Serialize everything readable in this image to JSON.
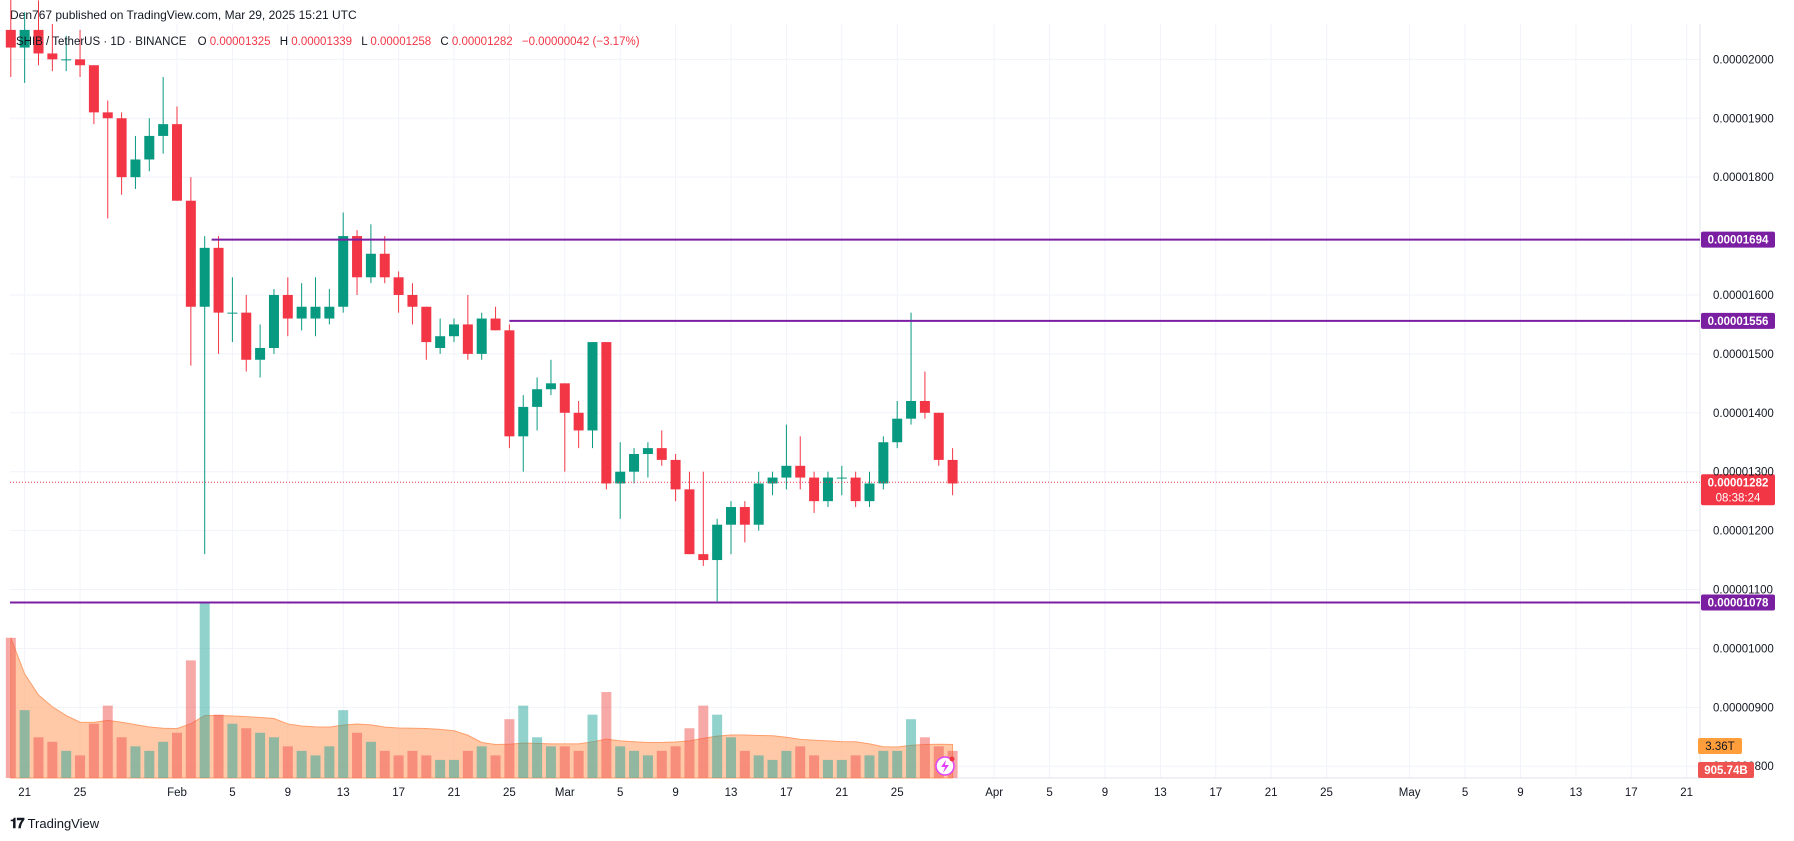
{
  "header": {
    "text": "Den767 published on TradingView.com, Mar 29, 2025 15:21 UTC"
  },
  "footer": {
    "logo": "𝟏𝟕",
    "brand": "TradingView"
  },
  "legend": {
    "symbol": "SHIB / TetherUS · 1D · BINANCE",
    "o_label": "O",
    "o": "0.00001325",
    "h_label": "H",
    "h": "0.00001339",
    "l_label": "L",
    "l": "0.00001258",
    "c_label": "C",
    "c": "0.00001282",
    "chg": "−0.00000042 (−3.17%)"
  },
  "colors": {
    "up": "#089981",
    "down": "#f23645",
    "level": "#7b1fa2",
    "vol_ma": "#ffb58a"
  },
  "chart_data": {
    "type": "candlestick",
    "title": "SHIB / TetherUS · 1D · BINANCE",
    "ylim": [
      7.8e-06,
      2.06e-05
    ],
    "y_ticks": [
      "0.00002000",
      "0.00001900",
      "0.00001800",
      "0.00001600",
      "0.00001500",
      "0.00001400",
      "0.00001300",
      "0.00001200",
      "0.00001100",
      "0.00001000",
      "0.00000900",
      "0.00000800"
    ],
    "y_tick_values": [
      2e-05,
      1.9e-05,
      1.8e-05,
      1.6e-05,
      1.5e-05,
      1.4e-05,
      1.3e-05,
      1.2e-05,
      1.1e-05,
      1e-05,
      9e-06,
      8e-06
    ],
    "x_ticks": [
      {
        "label": "21",
        "day": -11
      },
      {
        "label": "25",
        "day": -7
      },
      {
        "label": "Feb",
        "day": 0
      },
      {
        "label": "5",
        "day": 4
      },
      {
        "label": "9",
        "day": 8
      },
      {
        "label": "13",
        "day": 12
      },
      {
        "label": "17",
        "day": 16
      },
      {
        "label": "21",
        "day": 20
      },
      {
        "label": "25",
        "day": 24
      },
      {
        "label": "Mar",
        "day": 28
      },
      {
        "label": "5",
        "day": 32
      },
      {
        "label": "9",
        "day": 36
      },
      {
        "label": "13",
        "day": 40
      },
      {
        "label": "17",
        "day": 44
      },
      {
        "label": "21",
        "day": 48
      },
      {
        "label": "25",
        "day": 52
      },
      {
        "label": "Apr",
        "day": 59
      },
      {
        "label": "5",
        "day": 63
      },
      {
        "label": "9",
        "day": 67
      },
      {
        "label": "13",
        "day": 71
      },
      {
        "label": "17",
        "day": 75
      },
      {
        "label": "21",
        "day": 79
      },
      {
        "label": "25",
        "day": 83
      },
      {
        "label": "May",
        "day": 89
      },
      {
        "label": "5",
        "day": 93
      },
      {
        "label": "9",
        "day": 97
      },
      {
        "label": "13",
        "day": 101
      },
      {
        "label": "17",
        "day": 105
      },
      {
        "label": "21",
        "day": 109
      }
    ],
    "levels": [
      {
        "value": 1.694e-05,
        "label": "0.00001694"
      },
      {
        "value": 1.556e-05,
        "label": "0.00001556"
      },
      {
        "value": 1.078e-05,
        "label": "0.00001078"
      }
    ],
    "last_price": {
      "value": 1.282e-05,
      "label": "0.00001282",
      "countdown": "08:38:24"
    },
    "volume": {
      "last_label": "905.74B",
      "ma_label": "3.36T",
      "max": 4.2
    },
    "candles": [
      {
        "d": -12,
        "o": 2.05,
        "h": 2.12,
        "l": 1.97,
        "c": 2.02,
        "v": 3.1
      },
      {
        "d": -11,
        "o": 2.02,
        "h": 2.08,
        "l": 1.96,
        "c": 2.05,
        "v": 1.5
      },
      {
        "d": -10,
        "o": 2.05,
        "h": 2.1,
        "l": 1.99,
        "c": 2.01,
        "v": 0.9
      },
      {
        "d": -9,
        "o": 2.01,
        "h": 2.06,
        "l": 1.98,
        "c": 2.0,
        "v": 0.8
      },
      {
        "d": -8,
        "o": 2.0,
        "h": 2.04,
        "l": 1.98,
        "c": 2.0,
        "v": 0.6
      },
      {
        "d": -7,
        "o": 2.0,
        "h": 2.05,
        "l": 1.97,
        "c": 1.99,
        "v": 0.5
      },
      {
        "d": -6,
        "o": 1.99,
        "h": 1.99,
        "l": 1.89,
        "c": 1.91,
        "v": 1.2
      },
      {
        "d": -5,
        "o": 1.91,
        "h": 1.93,
        "l": 1.73,
        "c": 1.9,
        "v": 1.6
      },
      {
        "d": -4,
        "o": 1.9,
        "h": 1.91,
        "l": 1.77,
        "c": 1.8,
        "v": 0.9
      },
      {
        "d": -3,
        "o": 1.8,
        "h": 1.87,
        "l": 1.78,
        "c": 1.83,
        "v": 0.7
      },
      {
        "d": -2,
        "o": 1.83,
        "h": 1.9,
        "l": 1.81,
        "c": 1.87,
        "v": 0.6
      },
      {
        "d": -1,
        "o": 1.87,
        "h": 1.97,
        "l": 1.84,
        "c": 1.89,
        "v": 0.8
      },
      {
        "d": 0,
        "o": 1.89,
        "h": 1.92,
        "l": 1.76,
        "c": 1.76,
        "v": 1.0
      },
      {
        "d": 1,
        "o": 1.76,
        "h": 1.8,
        "l": 1.48,
        "c": 1.58,
        "v": 2.6
      },
      {
        "d": 2,
        "o": 1.58,
        "h": 1.7,
        "l": 1.16,
        "c": 1.68,
        "v": 3.9
      },
      {
        "d": 3,
        "o": 1.68,
        "h": 1.7,
        "l": 1.5,
        "c": 1.57,
        "v": 1.4
      },
      {
        "d": 4,
        "o": 1.57,
        "h": 1.63,
        "l": 1.52,
        "c": 1.57,
        "v": 1.2
      },
      {
        "d": 5,
        "o": 1.57,
        "h": 1.6,
        "l": 1.47,
        "c": 1.49,
        "v": 1.1
      },
      {
        "d": 6,
        "o": 1.49,
        "h": 1.55,
        "l": 1.46,
        "c": 1.51,
        "v": 1.0
      },
      {
        "d": 7,
        "o": 1.51,
        "h": 1.61,
        "l": 1.5,
        "c": 1.6,
        "v": 0.9
      },
      {
        "d": 8,
        "o": 1.6,
        "h": 1.63,
        "l": 1.53,
        "c": 1.56,
        "v": 0.7
      },
      {
        "d": 9,
        "o": 1.56,
        "h": 1.62,
        "l": 1.54,
        "c": 1.58,
        "v": 0.6
      },
      {
        "d": 10,
        "o": 1.56,
        "h": 1.63,
        "l": 1.53,
        "c": 1.58,
        "v": 0.5
      },
      {
        "d": 11,
        "o": 1.56,
        "h": 1.61,
        "l": 1.55,
        "c": 1.58,
        "v": 0.7
      },
      {
        "d": 12,
        "o": 1.58,
        "h": 1.74,
        "l": 1.57,
        "c": 1.7,
        "v": 1.5
      },
      {
        "d": 13,
        "o": 1.7,
        "h": 1.71,
        "l": 1.6,
        "c": 1.63,
        "v": 1.0
      },
      {
        "d": 14,
        "o": 1.63,
        "h": 1.72,
        "l": 1.62,
        "c": 1.67,
        "v": 0.8
      },
      {
        "d": 15,
        "o": 1.67,
        "h": 1.7,
        "l": 1.62,
        "c": 1.63,
        "v": 0.6
      },
      {
        "d": 16,
        "o": 1.63,
        "h": 1.64,
        "l": 1.57,
        "c": 1.6,
        "v": 0.5
      },
      {
        "d": 17,
        "o": 1.6,
        "h": 1.62,
        "l": 1.55,
        "c": 1.58,
        "v": 0.6
      },
      {
        "d": 18,
        "o": 1.58,
        "h": 1.58,
        "l": 1.49,
        "c": 1.52,
        "v": 0.5
      },
      {
        "d": 19,
        "o": 1.51,
        "h": 1.56,
        "l": 1.5,
        "c": 1.53,
        "v": 0.4
      },
      {
        "d": 20,
        "o": 1.53,
        "h": 1.56,
        "l": 1.52,
        "c": 1.55,
        "v": 0.4
      },
      {
        "d": 21,
        "o": 1.55,
        "h": 1.6,
        "l": 1.49,
        "c": 1.5,
        "v": 0.6
      },
      {
        "d": 22,
        "o": 1.5,
        "h": 1.57,
        "l": 1.49,
        "c": 1.56,
        "v": 0.7
      },
      {
        "d": 23,
        "o": 1.56,
        "h": 1.58,
        "l": 1.54,
        "c": 1.54,
        "v": 0.5
      },
      {
        "d": 24,
        "o": 1.54,
        "h": 1.55,
        "l": 1.34,
        "c": 1.36,
        "v": 1.3
      },
      {
        "d": 25,
        "o": 1.36,
        "h": 1.43,
        "l": 1.3,
        "c": 1.41,
        "v": 1.6
      },
      {
        "d": 26,
        "o": 1.41,
        "h": 1.46,
        "l": 1.37,
        "c": 1.44,
        "v": 0.9
      },
      {
        "d": 27,
        "o": 1.44,
        "h": 1.49,
        "l": 1.43,
        "c": 1.45,
        "v": 0.7
      },
      {
        "d": 28,
        "o": 1.45,
        "h": 1.45,
        "l": 1.3,
        "c": 1.4,
        "v": 0.7
      },
      {
        "d": 29,
        "o": 1.4,
        "h": 1.42,
        "l": 1.34,
        "c": 1.37,
        "v": 0.6
      },
      {
        "d": 30,
        "o": 1.37,
        "h": 1.52,
        "l": 1.34,
        "c": 1.52,
        "v": 1.4
      },
      {
        "d": 31,
        "o": 1.52,
        "h": 1.52,
        "l": 1.27,
        "c": 1.28,
        "v": 1.9
      },
      {
        "d": 32,
        "o": 1.28,
        "h": 1.35,
        "l": 1.22,
        "c": 1.3,
        "v": 0.7
      },
      {
        "d": 33,
        "o": 1.3,
        "h": 1.34,
        "l": 1.28,
        "c": 1.33,
        "v": 0.6
      },
      {
        "d": 34,
        "o": 1.33,
        "h": 1.35,
        "l": 1.29,
        "c": 1.34,
        "v": 0.5
      },
      {
        "d": 35,
        "o": 1.34,
        "h": 1.37,
        "l": 1.31,
        "c": 1.32,
        "v": 0.6
      },
      {
        "d": 36,
        "o": 1.32,
        "h": 1.33,
        "l": 1.25,
        "c": 1.27,
        "v": 0.7
      },
      {
        "d": 37,
        "o": 1.27,
        "h": 1.3,
        "l": 1.16,
        "c": 1.16,
        "v": 1.1
      },
      {
        "d": 38,
        "o": 1.16,
        "h": 1.3,
        "l": 1.14,
        "c": 1.15,
        "v": 1.6
      },
      {
        "d": 39,
        "o": 1.15,
        "h": 1.22,
        "l": 1.08,
        "c": 1.21,
        "v": 1.4
      },
      {
        "d": 40,
        "o": 1.21,
        "h": 1.25,
        "l": 1.16,
        "c": 1.24,
        "v": 0.9
      },
      {
        "d": 41,
        "o": 1.24,
        "h": 1.25,
        "l": 1.18,
        "c": 1.21,
        "v": 0.6
      },
      {
        "d": 42,
        "o": 1.21,
        "h": 1.3,
        "l": 1.2,
        "c": 1.28,
        "v": 0.5
      },
      {
        "d": 43,
        "o": 1.28,
        "h": 1.3,
        "l": 1.26,
        "c": 1.29,
        "v": 0.4
      },
      {
        "d": 44,
        "o": 1.29,
        "h": 1.38,
        "l": 1.27,
        "c": 1.31,
        "v": 0.6
      },
      {
        "d": 45,
        "o": 1.31,
        "h": 1.36,
        "l": 1.27,
        "c": 1.29,
        "v": 0.7
      },
      {
        "d": 46,
        "o": 1.29,
        "h": 1.3,
        "l": 1.23,
        "c": 1.25,
        "v": 0.5
      },
      {
        "d": 47,
        "o": 1.25,
        "h": 1.3,
        "l": 1.24,
        "c": 1.29,
        "v": 0.4
      },
      {
        "d": 48,
        "o": 1.29,
        "h": 1.31,
        "l": 1.26,
        "c": 1.29,
        "v": 0.4
      },
      {
        "d": 49,
        "o": 1.29,
        "h": 1.3,
        "l": 1.24,
        "c": 1.25,
        "v": 0.5
      },
      {
        "d": 50,
        "o": 1.25,
        "h": 1.3,
        "l": 1.24,
        "c": 1.28,
        "v": 0.5
      },
      {
        "d": 51,
        "o": 1.28,
        "h": 1.36,
        "l": 1.27,
        "c": 1.35,
        "v": 0.6
      },
      {
        "d": 52,
        "o": 1.35,
        "h": 1.42,
        "l": 1.34,
        "c": 1.39,
        "v": 0.6
      },
      {
        "d": 53,
        "o": 1.39,
        "h": 1.57,
        "l": 1.38,
        "c": 1.42,
        "v": 1.3
      },
      {
        "d": 54,
        "o": 1.42,
        "h": 1.47,
        "l": 1.39,
        "c": 1.4,
        "v": 0.9
      },
      {
        "d": 55,
        "o": 1.4,
        "h": 1.4,
        "l": 1.31,
        "c": 1.32,
        "v": 0.7
      },
      {
        "d": 56,
        "o": 1.32,
        "h": 1.34,
        "l": 1.26,
        "c": 1.28,
        "v": 0.6
      }
    ]
  }
}
